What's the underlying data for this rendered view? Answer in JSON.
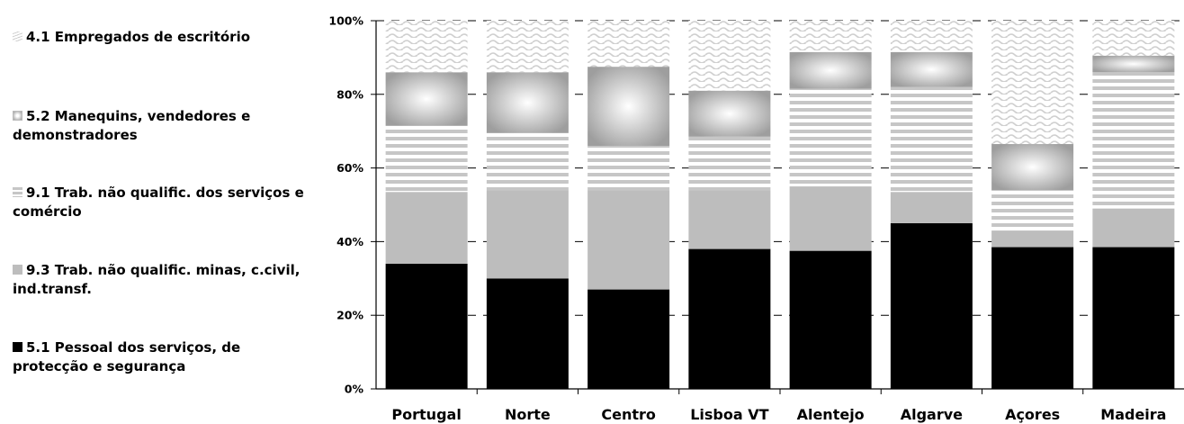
{
  "chart_data": {
    "type": "bar",
    "stacked": true,
    "normalized": true,
    "categories": [
      "Portugal",
      "Norte",
      "Centro",
      "Lisboa VT",
      "Alentejo",
      "Algarve",
      "Açores",
      "Madeira"
    ],
    "series": [
      {
        "name": "5.1 Pessoal dos serviços, de protecção e segurança",
        "pattern": "solid-black",
        "color": "#000000",
        "values": [
          34,
          30,
          27,
          38,
          37.5,
          45,
          38.5,
          38.5
        ]
      },
      {
        "name": "9.3 Trab. não qualific. minas, c.civil, ind.transf.",
        "pattern": "solid-gray",
        "color": "#bdbdbd",
        "values": [
          19.5,
          24,
          27,
          16,
          17.5,
          8.5,
          4.5,
          10.5
        ]
      },
      {
        "name": "9.1 Trab. não qualific. dos serviços e comércio",
        "pattern": "horizontal-stripes",
        "color": "#c8c8c8",
        "values": [
          18,
          15.5,
          12,
          14.5,
          26.5,
          28.5,
          11,
          37
        ]
      },
      {
        "name": "5.2 Manequins, vendedores e demonstradores",
        "pattern": "radial-gradient",
        "color": "#aaaaaa",
        "values": [
          14.5,
          16.5,
          21.5,
          12.5,
          10,
          9.5,
          12.5,
          4.5
        ]
      },
      {
        "name": "4.1 Empregados de escritório",
        "pattern": "wavy-light",
        "color": "#d8d8d8",
        "values": [
          14,
          14,
          12.5,
          19,
          8.5,
          8.5,
          33.5,
          9.5
        ]
      }
    ],
    "y_ticks": [
      "0%",
      "20%",
      "40%",
      "60%",
      "80%",
      "100%"
    ],
    "ylim": [
      0,
      100
    ],
    "grid": true,
    "legend_position": "left"
  },
  "legend_order": [
    4,
    3,
    2,
    1,
    0
  ],
  "legend_lines": [
    [
      "4.1 Empregados de escritório"
    ],
    [
      "5.2 Manequins, vendedores e",
      "demonstradores"
    ],
    [
      "9.1 Trab. não qualific. dos serviços e",
      "comércio"
    ],
    [
      "9.3 Trab. não qualific. minas, c.civil,",
      "ind.transf."
    ],
    [
      "5.1 Pessoal dos serviços, de",
      "protecção e segurança"
    ]
  ]
}
